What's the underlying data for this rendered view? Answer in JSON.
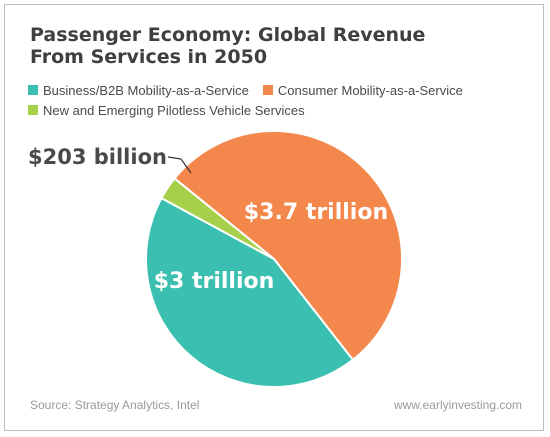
{
  "title_line1": "Passenger Economy: Global Revenue",
  "title_line2": "From Services in 2050",
  "source": "Source: Strategy Analytics, Intel",
  "website": "www.earlyinvesting.com",
  "chart_data": {
    "type": "pie",
    "title": "Passenger Economy: Global Revenue From Services in 2050",
    "slices": [
      {
        "name": "Business/B2B Mobility-as-a-Service",
        "value": 3.0,
        "unit": "trillion USD",
        "label": "$3 trillion",
        "color": "#3bbfb0"
      },
      {
        "name": "Consumer Mobility-as-a-Service",
        "value": 3.7,
        "unit": "trillion USD",
        "label": "$3.7 trillion",
        "color": "#f4874b"
      },
      {
        "name": "New and Emerging Pilotless Vehicle Services",
        "value": 0.203,
        "unit": "trillion USD",
        "label": "$203 billion",
        "color": "#a6d04a"
      }
    ],
    "legend_position": "top-left"
  }
}
